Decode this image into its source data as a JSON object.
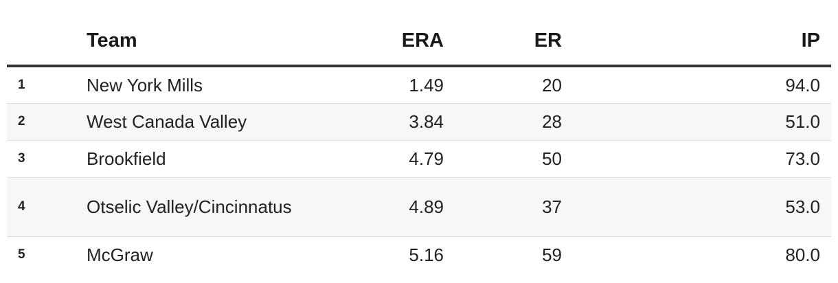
{
  "table": {
    "headers": {
      "rank": "",
      "team": "Team",
      "era": "ERA",
      "er": "ER",
      "ip": "IP"
    },
    "rows": [
      {
        "rank": "1",
        "team": "New York Mills",
        "era": "1.49",
        "er": "20",
        "ip": "94.0"
      },
      {
        "rank": "2",
        "team": "West Canada Valley",
        "era": "3.84",
        "er": "28",
        "ip": "51.0"
      },
      {
        "rank": "3",
        "team": "Brookfield",
        "era": "4.79",
        "er": "50",
        "ip": "73.0"
      },
      {
        "rank": "4",
        "team": "Otselic Valley/Cincinnatus",
        "era": "4.89",
        "er": "37",
        "ip": "53.0"
      },
      {
        "rank": "5",
        "team": "McGraw",
        "era": "5.16",
        "er": "59",
        "ip": "80.0"
      }
    ]
  }
}
